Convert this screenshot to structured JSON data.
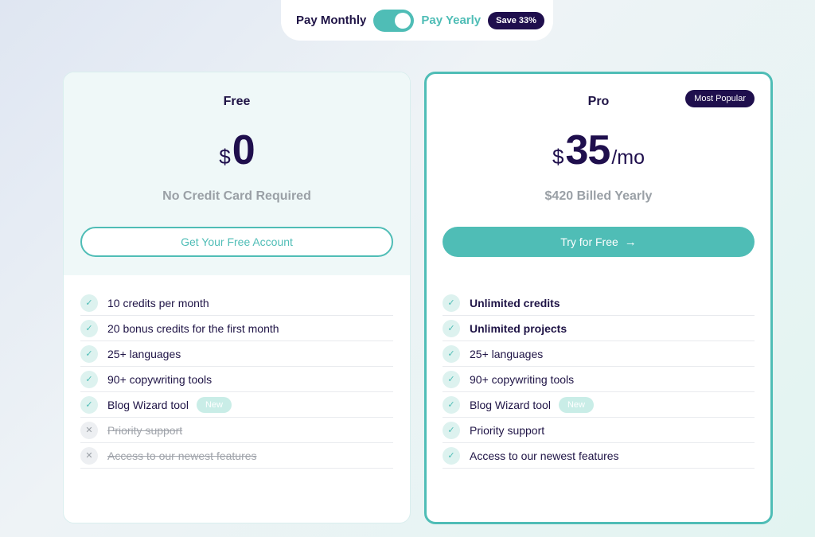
{
  "billing": {
    "monthly_label": "Pay Monthly",
    "yearly_label": "Pay Yearly",
    "save_badge": "Save 33%",
    "toggle_state": "yearly"
  },
  "plans": {
    "free": {
      "name": "Free",
      "currency": "$",
      "amount": "0",
      "note": "No Credit Card Required",
      "cta": "Get Your Free Account",
      "features": [
        {
          "text": "10 credits per month",
          "included": true
        },
        {
          "text": "20 bonus credits for the first month",
          "included": true
        },
        {
          "text": "25+ languages",
          "included": true
        },
        {
          "text": "90+ copywriting tools",
          "included": true
        },
        {
          "text": "Blog Wizard tool",
          "included": true,
          "badge": "New"
        },
        {
          "text": "Priority support",
          "included": false
        },
        {
          "text": "Access to our newest features",
          "included": false
        }
      ]
    },
    "pro": {
      "name": "Pro",
      "badge": "Most Popular",
      "currency": "$",
      "amount": "35",
      "period": "/mo",
      "note": "$420 Billed Yearly",
      "cta": "Try for Free",
      "cta_icon": "arrow-right-icon",
      "features": [
        {
          "text": "Unlimited credits",
          "included": true,
          "bold": true
        },
        {
          "text": "Unlimited projects",
          "included": true,
          "bold": true
        },
        {
          "text": "25+ languages",
          "included": true
        },
        {
          "text": "90+ copywriting tools",
          "included": true
        },
        {
          "text": "Blog Wizard tool",
          "included": true,
          "badge": "New"
        },
        {
          "text": "Priority support",
          "included": true
        },
        {
          "text": "Access to our newest features",
          "included": true
        }
      ]
    }
  },
  "colors": {
    "accent": "#4fbdb6",
    "dark": "#1f0f4d",
    "muted": "#9aa0a6"
  }
}
